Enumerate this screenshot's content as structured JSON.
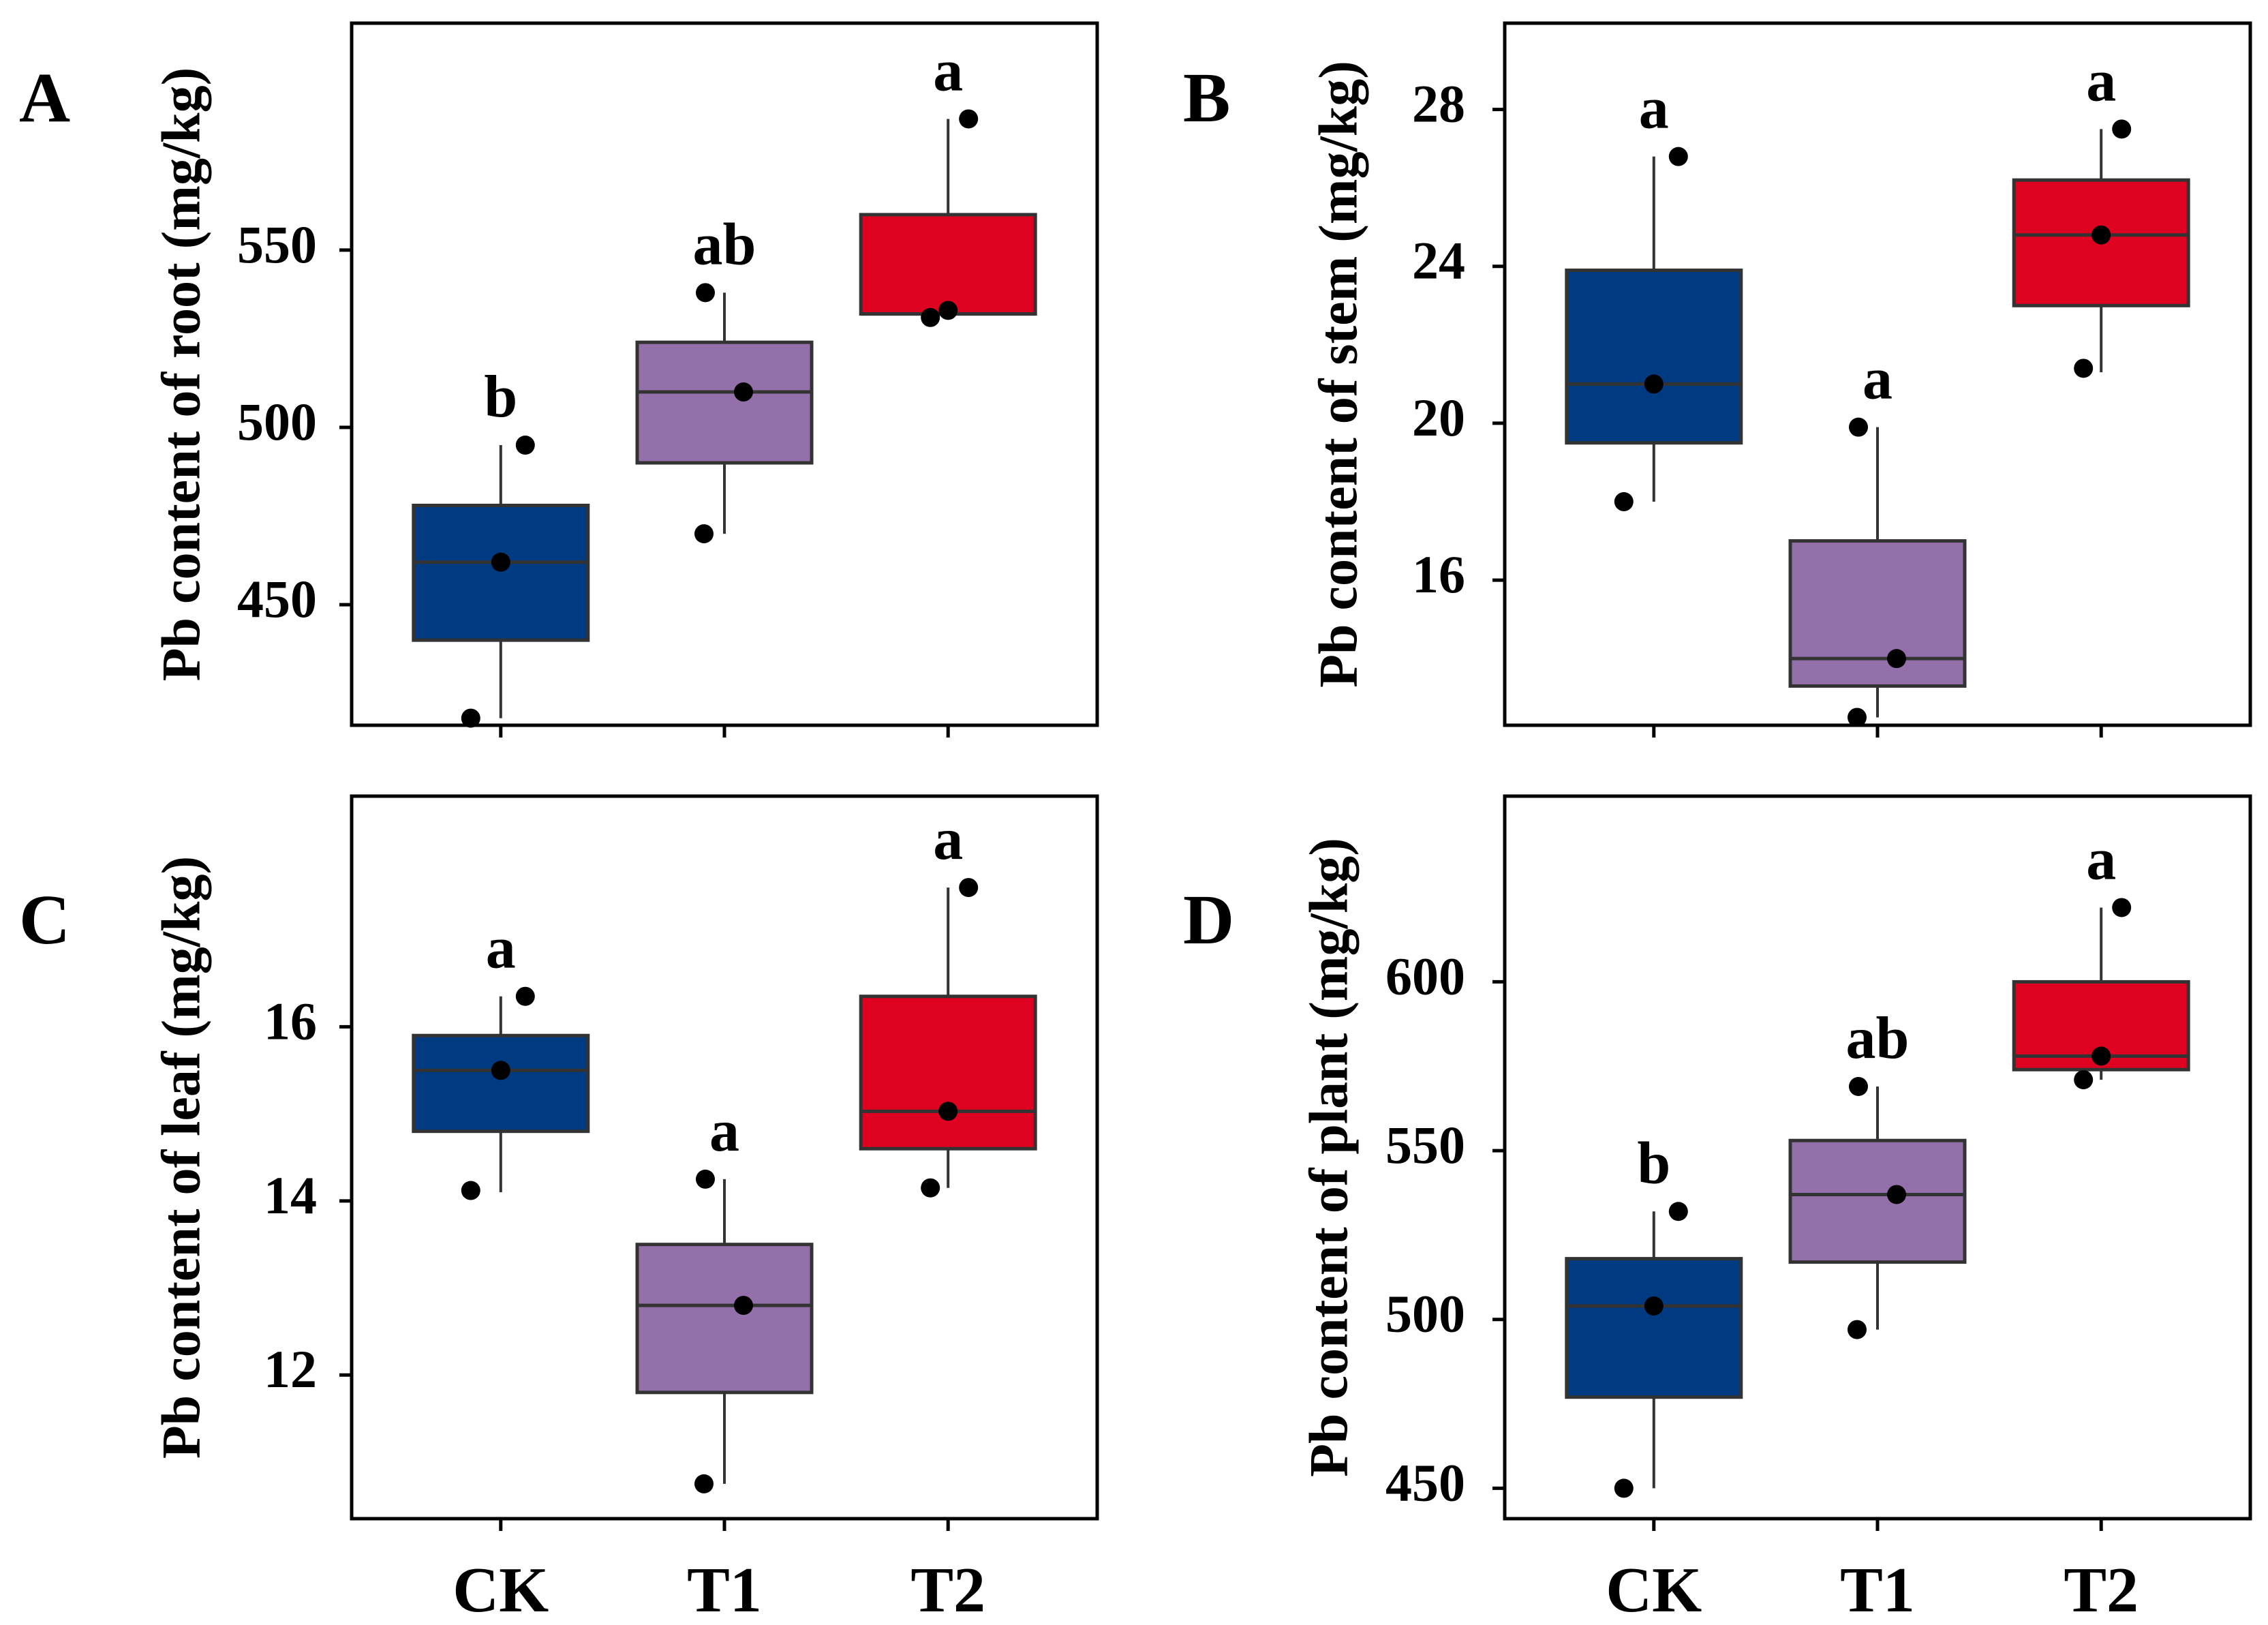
{
  "figure": {
    "categories": [
      "CK",
      "T1",
      "T2"
    ],
    "colors": {
      "CK": "#003a80",
      "T1": "#9470aa",
      "T2": "#de0220"
    }
  },
  "chart_data": [
    {
      "type": "box",
      "panel": "A",
      "ylabel": "Pb content of root (mg/kg)",
      "ylim": [
        416,
        614
      ],
      "yticks": [
        450,
        500,
        550
      ],
      "categories": [
        "CK",
        "T1",
        "T2"
      ],
      "boxes": [
        {
          "category": "CK",
          "whisker_low": 418,
          "q1": 440,
          "median": 462,
          "q3": 478,
          "whisker_high": 495,
          "points": [
            418,
            462,
            495
          ],
          "letter": "b"
        },
        {
          "category": "T1",
          "whisker_low": 470,
          "q1": 490,
          "median": 510,
          "q3": 524,
          "whisker_high": 538,
          "points": [
            470,
            510,
            538
          ],
          "letter": "ab"
        },
        {
          "category": "T2",
          "whisker_low": 532,
          "q1": 532,
          "median": 532,
          "q3": 560,
          "whisker_high": 587,
          "points": [
            531,
            533,
            587
          ],
          "letter": "a"
        }
      ],
      "show_xtick_labels": false
    },
    {
      "type": "box",
      "panel": "B",
      "ylabel": "Pb content of stem (mg/kg)",
      "ylim": [
        12.3,
        30.2
      ],
      "yticks": [
        16,
        20,
        24,
        28
      ],
      "categories": [
        "CK",
        "T1",
        "T2"
      ],
      "boxes": [
        {
          "category": "CK",
          "whisker_low": 18.0,
          "q1": 19.5,
          "median": 21.0,
          "q3": 23.9,
          "whisker_high": 26.8,
          "points": [
            18.0,
            21.0,
            26.8
          ],
          "letter": "a"
        },
        {
          "category": "T1",
          "whisker_low": 12.5,
          "q1": 13.3,
          "median": 14.0,
          "q3": 17.0,
          "whisker_high": 19.9,
          "points": [
            12.5,
            14.0,
            19.9
          ],
          "letter": "a"
        },
        {
          "category": "T2",
          "whisker_low": 21.3,
          "q1": 23.0,
          "median": 24.8,
          "q3": 26.2,
          "whisker_high": 27.5,
          "points": [
            21.4,
            24.8,
            27.5
          ],
          "letter": "a"
        }
      ],
      "show_xtick_labels": false
    },
    {
      "type": "box",
      "panel": "C",
      "ylabel": "Pb content of leaf (mg/kg)",
      "ylim": [
        10.35,
        18.65
      ],
      "yticks": [
        12,
        14,
        16
      ],
      "categories": [
        "CK",
        "T1",
        "T2"
      ],
      "boxes": [
        {
          "category": "CK",
          "whisker_low": 14.1,
          "q1": 14.8,
          "median": 15.5,
          "q3": 15.9,
          "whisker_high": 16.35,
          "points": [
            14.12,
            15.5,
            16.35
          ],
          "letter": "a"
        },
        {
          "category": "T1",
          "whisker_low": 10.75,
          "q1": 11.8,
          "median": 12.8,
          "q3": 13.5,
          "whisker_high": 14.25,
          "points": [
            10.75,
            12.8,
            14.25
          ],
          "letter": "a"
        },
        {
          "category": "T2",
          "whisker_low": 14.15,
          "q1": 14.6,
          "median": 15.03,
          "q3": 16.35,
          "whisker_high": 17.6,
          "points": [
            14.15,
            15.03,
            17.6
          ],
          "letter": "a"
        }
      ],
      "show_xtick_labels": true
    },
    {
      "type": "box",
      "panel": "D",
      "ylabel": "Pb content of plant (mg/kg)",
      "ylim": [
        441,
        655
      ],
      "yticks": [
        450,
        500,
        550,
        600
      ],
      "categories": [
        "CK",
        "T1",
        "T2"
      ],
      "boxes": [
        {
          "category": "CK",
          "whisker_low": 450,
          "q1": 477,
          "median": 504,
          "q3": 518,
          "whisker_high": 532,
          "points": [
            450,
            504,
            532
          ],
          "letter": "b"
        },
        {
          "category": "T1",
          "whisker_low": 497,
          "q1": 517,
          "median": 537,
          "q3": 553,
          "whisker_high": 569,
          "points": [
            497,
            537,
            569
          ],
          "letter": "ab"
        },
        {
          "category": "T2",
          "whisker_low": 571,
          "q1": 574,
          "median": 578,
          "q3": 600,
          "whisker_high": 622,
          "points": [
            571,
            578,
            622
          ],
          "letter": "a"
        }
      ],
      "show_xtick_labels": true
    }
  ]
}
